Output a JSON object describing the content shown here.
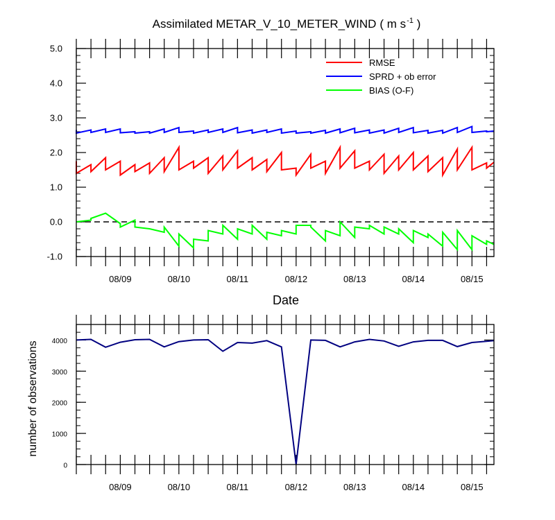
{
  "chart_data": [
    {
      "type": "line",
      "title": "Assimilated METAR_V_10_METER_WIND",
      "title_units": "( m s",
      "title_units_sup": "-1",
      "title_units_close": " )",
      "xlabel": "Date",
      "ylabel": "",
      "ylim": [
        -1.0,
        5.0
      ],
      "yticks": [
        -1.0,
        0.0,
        1.0,
        2.0,
        3.0,
        4.0,
        5.0
      ],
      "ytick_labels": [
        "-1.0",
        "0.0",
        "1.0",
        "2.0",
        "3.0",
        "4.0",
        "5.0"
      ],
      "xlim": [
        8.0,
        15.125
      ],
      "xticks": [
        8.75,
        9.75,
        10.75,
        11.75,
        12.75,
        13.75,
        14.75
      ],
      "xtick_labels": [
        "08/09",
        "08/10",
        "08/11",
        "08/12",
        "08/13",
        "08/14",
        "08/15"
      ],
      "legend_position": "top-right",
      "zero_line": true,
      "series": [
        {
          "name": "RMSE",
          "color": "#ff0000",
          "x": [
            8.0,
            8.0,
            8.25,
            8.25,
            8.5,
            8.5,
            8.75,
            8.75,
            9.0,
            9.0,
            9.25,
            9.25,
            9.5,
            9.5,
            9.75,
            9.75,
            10.0,
            10.0,
            10.25,
            10.25,
            10.5,
            10.5,
            10.75,
            10.75,
            11.0,
            11.0,
            11.25,
            11.25,
            11.5,
            11.5,
            11.75,
            11.75,
            12.0,
            12.0,
            12.25,
            12.25,
            12.5,
            12.5,
            12.75,
            12.75,
            13.0,
            13.0,
            13.25,
            13.25,
            13.5,
            13.5,
            13.75,
            13.75,
            14.0,
            14.0,
            14.25,
            14.25,
            14.5,
            14.5,
            14.75,
            14.75,
            15.0,
            15.0,
            15.125
          ],
          "y": [
            1.75,
            1.4,
            1.65,
            1.45,
            1.85,
            1.5,
            1.75,
            1.35,
            1.65,
            1.45,
            1.7,
            1.4,
            1.85,
            1.45,
            2.15,
            1.5,
            1.75,
            1.55,
            1.85,
            1.4,
            1.9,
            1.5,
            2.05,
            1.55,
            1.85,
            1.5,
            1.8,
            1.45,
            2.0,
            1.5,
            1.55,
            1.35,
            1.95,
            1.55,
            1.75,
            1.4,
            2.15,
            1.55,
            2.05,
            1.55,
            1.75,
            1.5,
            1.95,
            1.4,
            1.9,
            1.5,
            2.0,
            1.5,
            1.9,
            1.45,
            1.85,
            1.35,
            2.1,
            1.5,
            2.15,
            1.5,
            1.7,
            1.55,
            1.72
          ]
        },
        {
          "name": "SPRD + ob error",
          "color": "#0000ff",
          "x": [
            8.0,
            8.0,
            8.25,
            8.25,
            8.5,
            8.5,
            8.75,
            8.75,
            9.0,
            9.0,
            9.25,
            9.25,
            9.5,
            9.5,
            9.75,
            9.75,
            10.0,
            10.0,
            10.25,
            10.25,
            10.5,
            10.5,
            10.75,
            10.75,
            11.0,
            11.0,
            11.25,
            11.25,
            11.5,
            11.5,
            11.75,
            11.75,
            12.0,
            12.0,
            12.25,
            12.25,
            12.5,
            12.5,
            12.75,
            12.75,
            13.0,
            13.0,
            13.25,
            13.25,
            13.5,
            13.5,
            13.75,
            13.75,
            14.0,
            14.0,
            14.25,
            14.25,
            14.5,
            14.5,
            14.75,
            14.75,
            15.0,
            15.0,
            15.125
          ],
          "y": [
            2.65,
            2.56,
            2.65,
            2.58,
            2.68,
            2.58,
            2.68,
            2.57,
            2.6,
            2.56,
            2.6,
            2.56,
            2.68,
            2.58,
            2.72,
            2.58,
            2.62,
            2.56,
            2.65,
            2.58,
            2.68,
            2.58,
            2.72,
            2.57,
            2.65,
            2.56,
            2.65,
            2.58,
            2.68,
            2.56,
            2.62,
            2.56,
            2.6,
            2.56,
            2.64,
            2.56,
            2.68,
            2.57,
            2.7,
            2.57,
            2.65,
            2.56,
            2.65,
            2.56,
            2.7,
            2.58,
            2.72,
            2.57,
            2.64,
            2.56,
            2.64,
            2.56,
            2.72,
            2.58,
            2.75,
            2.58,
            2.62,
            2.6,
            2.62
          ]
        },
        {
          "name": "BIAS (O-F)",
          "color": "#00ff00",
          "x": [
            8.0,
            8.25,
            8.25,
            8.5,
            8.75,
            8.75,
            9.0,
            9.0,
            9.25,
            9.25,
            9.5,
            9.5,
            9.75,
            9.75,
            10.0,
            10.0,
            10.25,
            10.25,
            10.5,
            10.5,
            10.75,
            10.75,
            11.0,
            11.0,
            11.25,
            11.25,
            11.5,
            11.5,
            11.75,
            11.75,
            12.0,
            12.0,
            12.25,
            12.25,
            12.5,
            12.5,
            12.75,
            12.75,
            13.0,
            13.0,
            13.25,
            13.25,
            13.5,
            13.5,
            13.75,
            13.75,
            14.0,
            14.0,
            14.25,
            14.25,
            14.5,
            14.5,
            14.75,
            14.75,
            15.0,
            15.0,
            15.125
          ],
          "y": [
            0.0,
            0.05,
            0.1,
            0.25,
            -0.05,
            -0.15,
            0.05,
            -0.15,
            -0.2,
            -0.2,
            -0.3,
            -0.15,
            -0.7,
            -0.35,
            -0.75,
            -0.5,
            -0.55,
            -0.25,
            -0.35,
            -0.1,
            -0.5,
            -0.2,
            -0.35,
            -0.1,
            -0.5,
            -0.3,
            -0.4,
            -0.25,
            -0.35,
            -0.1,
            -0.1,
            -0.15,
            -0.55,
            -0.25,
            -0.4,
            0.0,
            -0.45,
            -0.15,
            -0.2,
            -0.1,
            -0.35,
            -0.15,
            -0.35,
            -0.2,
            -0.6,
            -0.25,
            -0.45,
            -0.35,
            -0.7,
            -0.3,
            -0.8,
            -0.25,
            -0.8,
            -0.4,
            -0.65,
            -0.55,
            -0.65
          ]
        }
      ]
    },
    {
      "type": "line",
      "title": "",
      "xlabel": "",
      "ylabel": "number of observations",
      "ylim": [
        0,
        4500
      ],
      "yticks": [
        0,
        1000,
        2000,
        3000,
        4000
      ],
      "ytick_labels": [
        "0",
        "1000",
        "2000",
        "3000",
        "4000"
      ],
      "xlim": [
        8.0,
        15.125
      ],
      "xticks": [
        8.75,
        9.75,
        10.75,
        11.75,
        12.75,
        13.75,
        14.75
      ],
      "xtick_labels": [
        "08/09",
        "08/10",
        "08/11",
        "08/12",
        "08/13",
        "08/14",
        "08/15"
      ],
      "series": [
        {
          "name": "",
          "color": "#000080",
          "x": [
            8.0,
            8.25,
            8.5,
            8.75,
            9.0,
            9.25,
            9.5,
            9.75,
            10.0,
            10.25,
            10.5,
            10.75,
            11.0,
            11.25,
            11.5,
            11.75,
            12.0,
            12.25,
            12.5,
            12.75,
            13.0,
            13.25,
            13.5,
            13.75,
            14.0,
            14.25,
            14.5,
            14.75,
            15.0,
            15.125
          ],
          "y": [
            4000,
            4020,
            3770,
            3930,
            4010,
            4020,
            3780,
            3950,
            4000,
            4010,
            3640,
            3920,
            3900,
            3980,
            3780,
            0,
            4000,
            3990,
            3780,
            3940,
            4020,
            3970,
            3800,
            3940,
            3990,
            3990,
            3790,
            3920,
            3960,
            3980
          ]
        }
      ]
    }
  ]
}
